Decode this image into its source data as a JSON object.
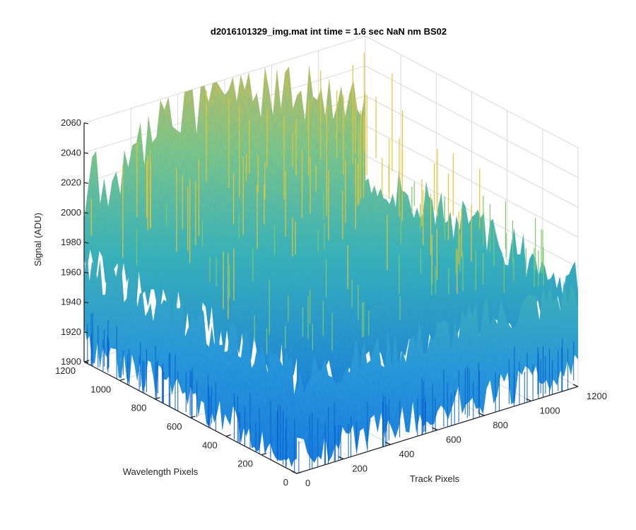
{
  "chart_data": {
    "type": "surface",
    "title": "d2016101329_img.mat int time = 1.6 sec  NaN nm BS02",
    "xlabel": "Track Pixels",
    "ylabel": "Wavelength Pixels",
    "zlabel": "Signal (ADU)",
    "xlim": [
      0,
      1200
    ],
    "ylim": [
      0,
      1200
    ],
    "zlim": [
      1900,
      2060
    ],
    "xticks": [
      "0",
      "200",
      "400",
      "600",
      "800",
      "1000",
      "1200"
    ],
    "yticks": [
      "0",
      "200",
      "400",
      "600",
      "800",
      "1000",
      "1200"
    ],
    "zticks": [
      "1900",
      "1920",
      "1940",
      "1960",
      "1980",
      "2000",
      "2020",
      "2040",
      "2060"
    ],
    "grid": true,
    "colormap": "parula",
    "approx_mean_signal": 1965,
    "approx_peak_signal": 2060,
    "approx_min_signal": 1905
  },
  "colors": {
    "axis": "#262626",
    "grid": "#d9d9d9",
    "low": "#0a6fd6",
    "mid": "#35b6a8",
    "high": "#e6c534"
  }
}
